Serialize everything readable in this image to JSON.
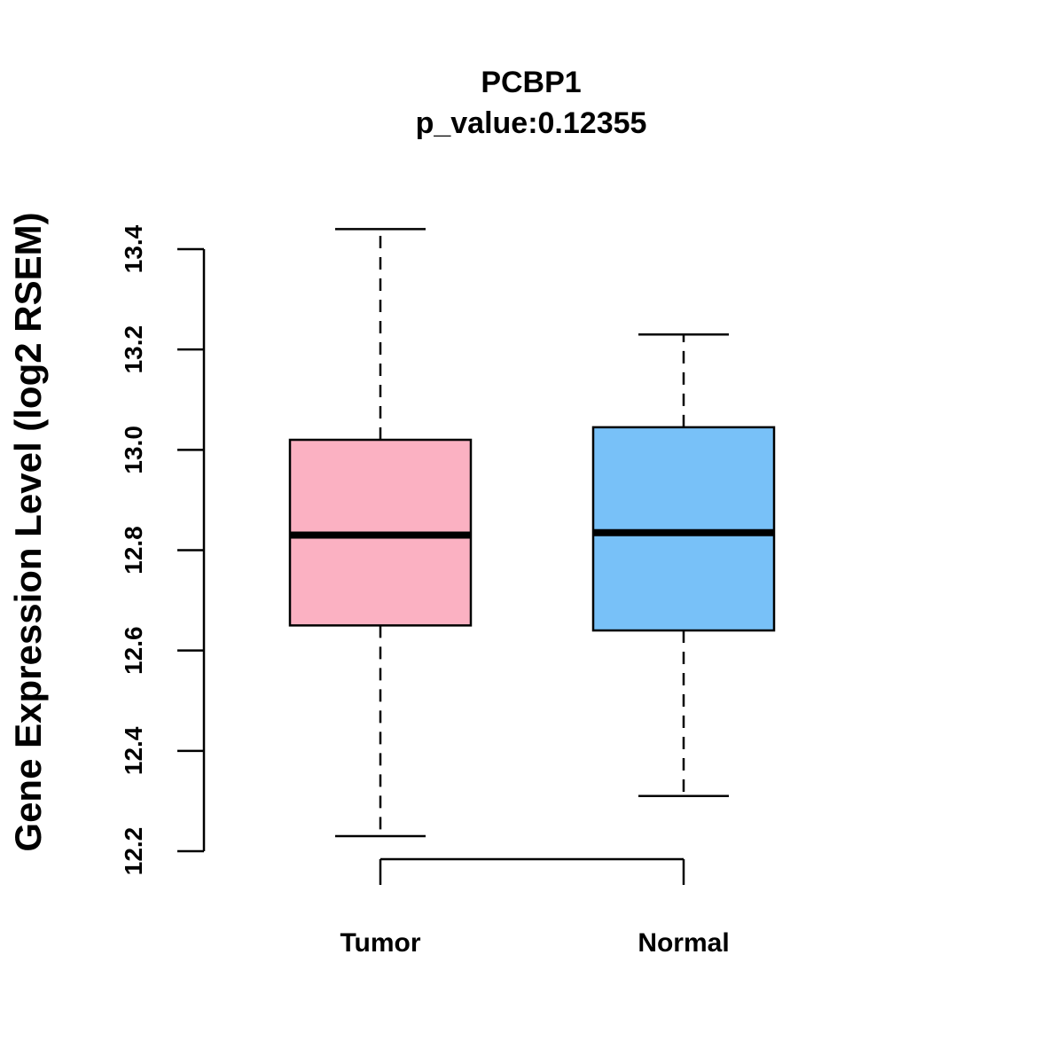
{
  "chart_data": {
    "type": "boxplot",
    "title": "PCBP1",
    "subtitle": "p_value:0.12355",
    "xlabel": "",
    "ylabel": "Gene Expression Level (log2 RSEM)",
    "ylim": [
      12.2,
      13.4
    ],
    "yticks": [
      12.2,
      12.4,
      12.6,
      12.8,
      13.0,
      13.2,
      13.4
    ],
    "ytick_labels": [
      "12.2",
      "12.4",
      "12.6",
      "12.8",
      "13.0",
      "13.2",
      "13.4"
    ],
    "categories": [
      "Tumor",
      "Normal"
    ],
    "boxes": [
      {
        "name": "Tumor",
        "whisker_low": 12.23,
        "q1": 12.65,
        "median": 12.83,
        "q3": 13.02,
        "whisker_high": 13.44,
        "color": "#FBB1C2"
      },
      {
        "name": "Normal",
        "whisker_low": 12.31,
        "q1": 12.64,
        "median": 12.835,
        "q3": 13.045,
        "whisker_high": 13.23,
        "color": "#78C1F8"
      }
    ],
    "grid": false
  }
}
